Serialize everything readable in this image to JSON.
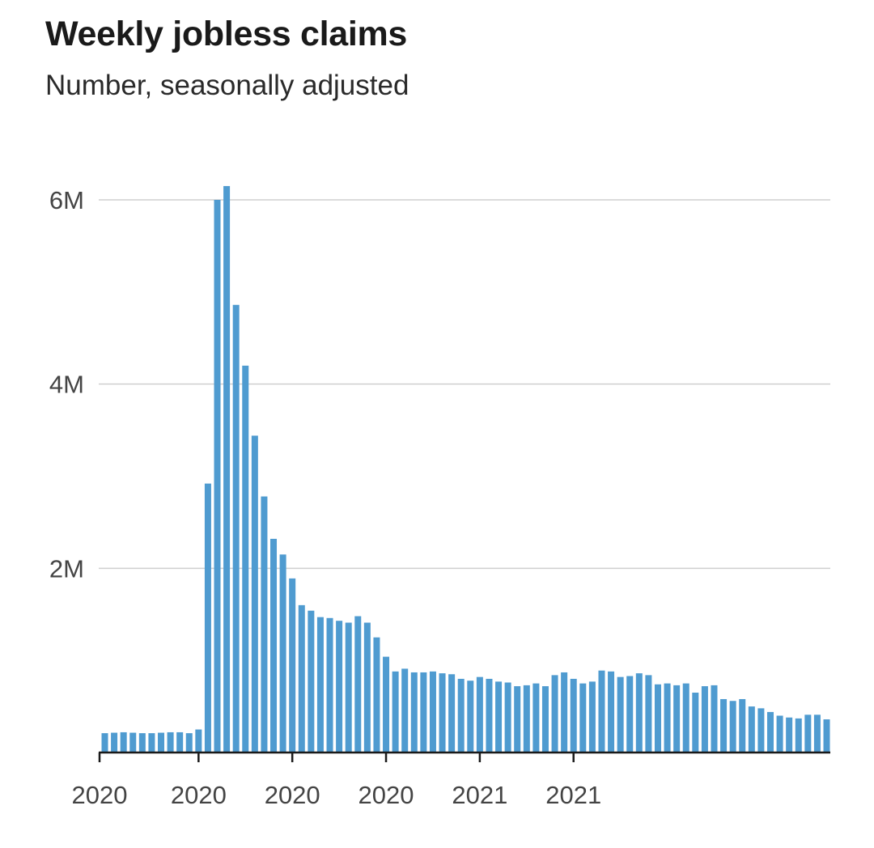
{
  "chart_data": {
    "type": "bar",
    "title": "Weekly jobless claims",
    "subtitle": "Number, seasonally adjusted",
    "xlabel": "",
    "ylabel": "",
    "ylim": [
      0,
      6000000
    ],
    "yticks": [
      {
        "value": 2000000,
        "label": "2M"
      },
      {
        "value": 4000000,
        "label": "4M"
      },
      {
        "value": 6000000,
        "label": "6M"
      }
    ],
    "xticks": [
      {
        "index": 0,
        "label": "2020"
      },
      {
        "index": 10,
        "label": "2020"
      },
      {
        "index": 20,
        "label": "2020"
      },
      {
        "index": 30,
        "label": "2020"
      },
      {
        "index": 40,
        "label": "2021"
      },
      {
        "index": 50,
        "label": "2021"
      }
    ],
    "grid": true,
    "legend": "none",
    "color": "#4f9bd0",
    "values": [
      210000,
      215000,
      220000,
      215000,
      210000,
      210000,
      215000,
      220000,
      220000,
      210000,
      250000,
      2920000,
      6000000,
      6150000,
      4860000,
      4200000,
      3440000,
      2780000,
      2320000,
      2150000,
      1890000,
      1600000,
      1540000,
      1470000,
      1460000,
      1430000,
      1410000,
      1480000,
      1410000,
      1250000,
      1040000,
      880000,
      910000,
      870000,
      870000,
      880000,
      860000,
      850000,
      800000,
      780000,
      820000,
      800000,
      770000,
      760000,
      720000,
      730000,
      750000,
      720000,
      840000,
      870000,
      800000,
      750000,
      770000,
      890000,
      880000,
      820000,
      830000,
      860000,
      840000,
      740000,
      750000,
      730000,
      750000,
      650000,
      720000,
      730000,
      580000,
      560000,
      580000,
      500000,
      480000,
      440000,
      400000,
      380000,
      370000,
      410000,
      410000,
      360000
    ]
  }
}
